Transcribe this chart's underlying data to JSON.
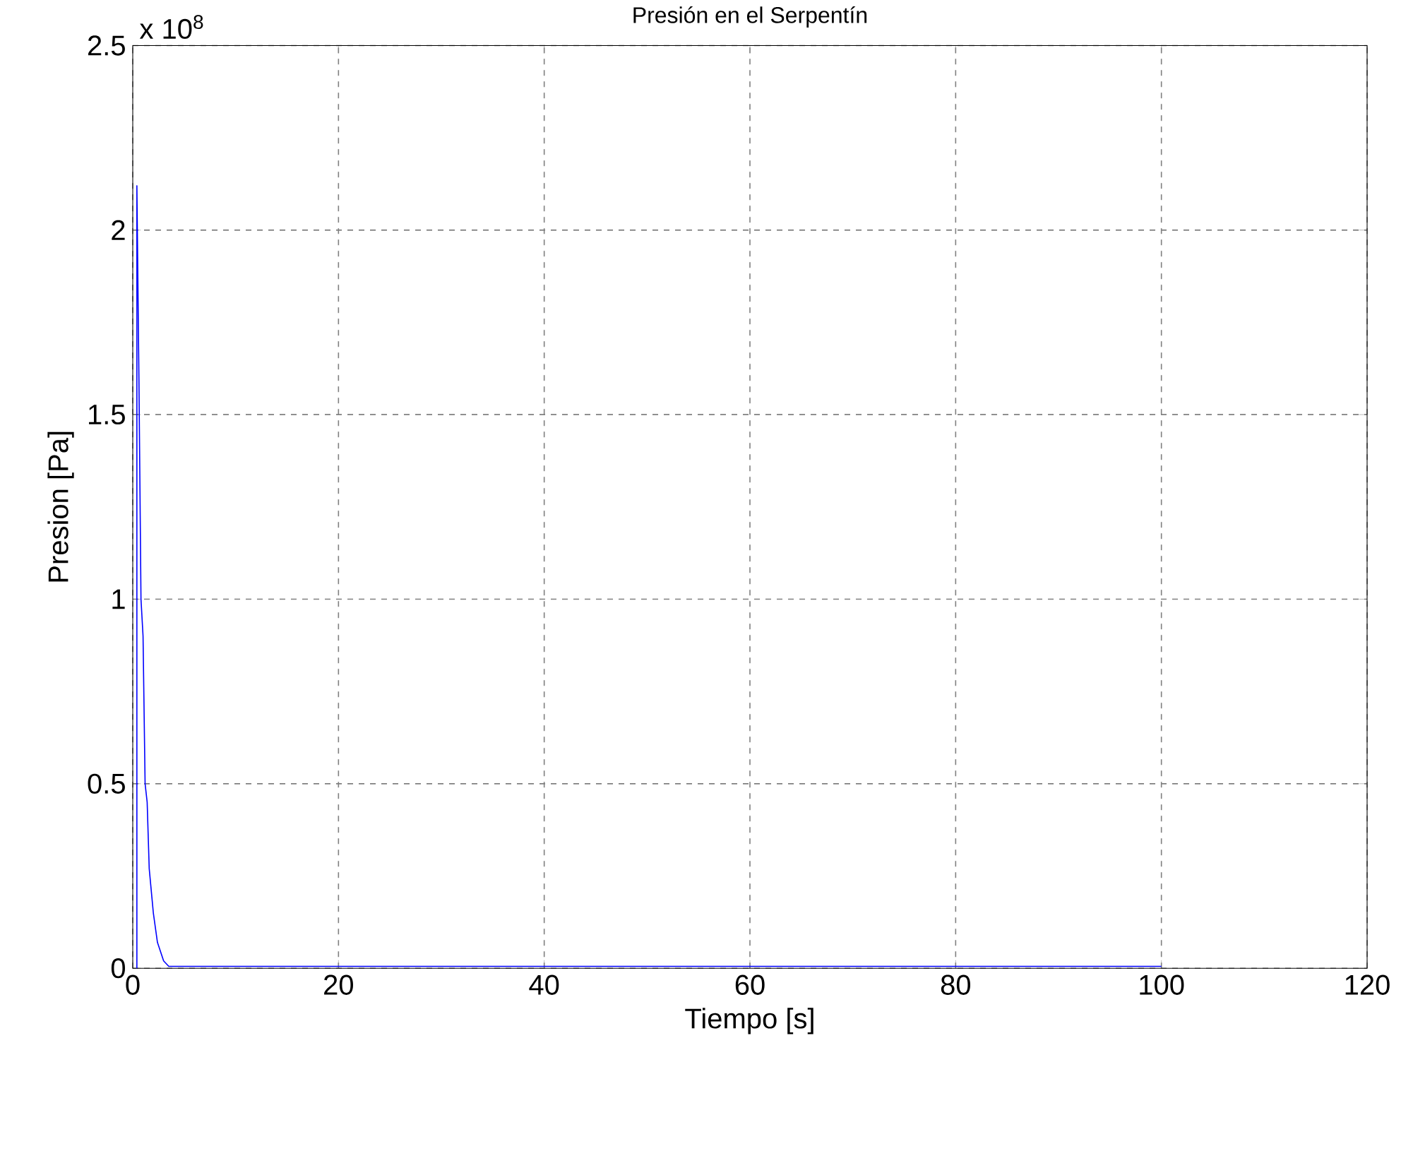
{
  "chart_data": {
    "type": "line",
    "title": "Presión en el Serpentín",
    "xlabel": "Tiempo [s]",
    "ylabel": "Presion [Pa]",
    "annotations": [
      "x 10$^{8}$"
    ],
    "series": [
      {
        "color": "#0000ff",
        "x": [
          0.4,
          0.4,
          0.6,
          0.8,
          1.0,
          1.2,
          1.4,
          1.6,
          2.0,
          2.4,
          3.0,
          3.5,
          100
        ],
        "values": [
          0,
          2.12,
          1.6,
          1.0,
          0.9,
          0.5,
          0.45,
          0.27,
          0.15,
          0.07,
          0.02,
          0.005,
          0.005
        ]
      }
    ],
    "xlim": [
      0,
      120
    ],
    "ylim": [
      0,
      2.5
    ],
    "xticks": [
      0,
      20,
      40,
      60,
      80,
      100,
      120
    ],
    "yticks": [
      0,
      0.5,
      1,
      1.5,
      2,
      2.5
    ],
    "grid": true,
    "line_style": "solid"
  }
}
